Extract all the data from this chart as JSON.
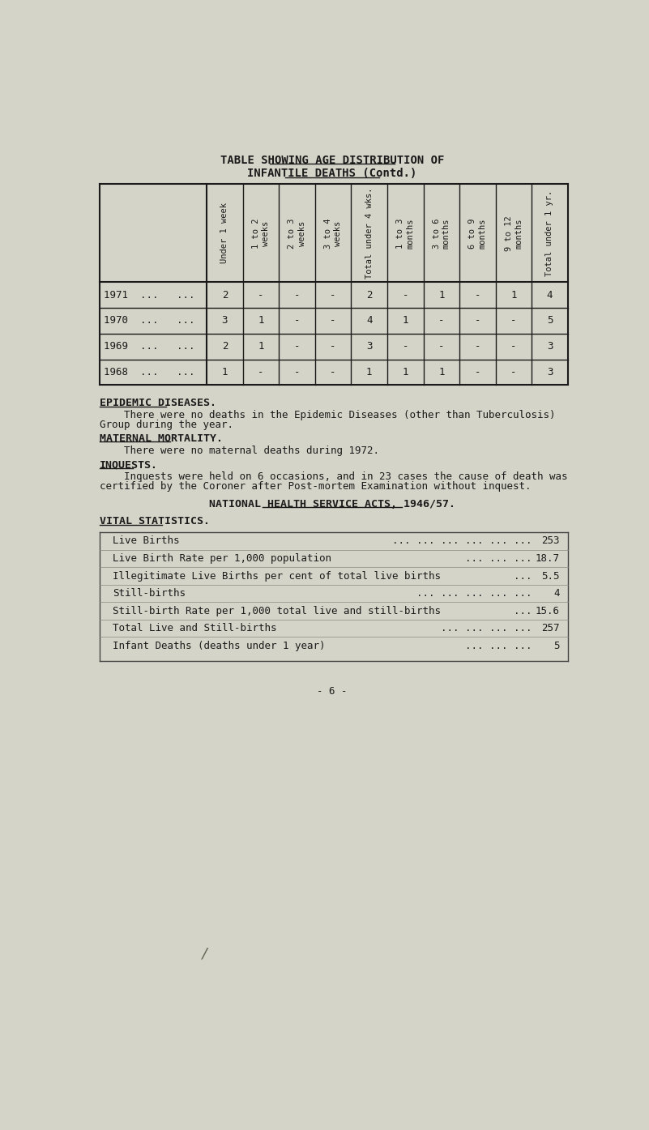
{
  "title_line1": "TABLE SHOWING AGE DISTRIBUTION OF",
  "title_line2": "INFANTILE DEATHS (Contd.)",
  "bg_color": "#d4d4c8",
  "col_headers": [
    "Under 1 week",
    "1 to 2 weeks",
    "2 to 3 weeks",
    "3 to 4 weeks",
    "Total under 4 wks.",
    "1 to 3 months",
    "3 to 6 months",
    "6 to 9 months",
    "9 to 12 months",
    "Total under 1 yr."
  ],
  "row_labels": [
    "1971  ...   ...",
    "1970  ...   ...",
    "1969  ...   ...",
    "1968  ...   ..."
  ],
  "table_data": [
    [
      "2",
      "-",
      "-",
      "-",
      "2",
      "-",
      "1",
      "-",
      "1",
      "4"
    ],
    [
      "3",
      "1",
      "-",
      "-",
      "4",
      "1",
      "-",
      "-",
      "-",
      "5"
    ],
    [
      "2",
      "1",
      "-",
      "-",
      "3",
      "-",
      "-",
      "-",
      "-",
      "3"
    ],
    [
      "1",
      "-",
      "-",
      "-",
      "1",
      "1",
      "1",
      "-",
      "-",
      "3"
    ]
  ],
  "epidemic_heading": "EPIDEMIC DISEASES.",
  "epidemic_text1": "    There were no deaths in the Epidemic Diseases (other than Tuberculosis)",
  "epidemic_text2": "Group during the year.",
  "maternal_heading": "MATERNAL MORTALITY.",
  "maternal_text": "    There were no maternal deaths during 1972.",
  "inquests_heading": "INQUESTS.",
  "inquests_text1": "    Inquests were held on 6 occasions, and in 23 cases the cause of death was",
  "inquests_text2": "certified by the Coroner after Post-mortem Examination without inquest.",
  "nhs_heading": "NATIONAL HEALTH SERVICE ACTS, 1946/57.",
  "vital_heading": "VITAL STATISTICS.",
  "vital_rows": [
    [
      "Live Births",
      "... ... ... ... ... ...",
      "253"
    ],
    [
      "Live Birth Rate per 1,000 population",
      "... ... ...",
      "18.7"
    ],
    [
      "Illegitimate Live Births per cent of total live births",
      "...",
      "5.5"
    ],
    [
      "Still-births",
      "... ... ... ... ...",
      "4"
    ],
    [
      "Still-birth Rate per 1,000 total live and still-births",
      "...",
      "15.6"
    ],
    [
      "Total Live and Still-births",
      "... ... ... ...",
      "257"
    ],
    [
      "Infant Deaths (deaths under 1 year)",
      "... ... ...",
      "5"
    ]
  ],
  "page_number": "- 6 -"
}
